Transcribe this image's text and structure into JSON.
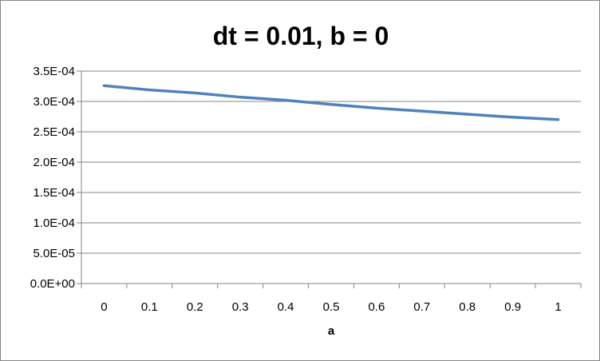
{
  "chart_data": {
    "type": "line",
    "title": "dt = 0.01, b = 0",
    "xlabel": "a",
    "ylabel": "",
    "categories": [
      "0",
      "0.1",
      "0.2",
      "0.3",
      "0.4",
      "0.5",
      "0.6",
      "0.7",
      "0.8",
      "0.9",
      "1"
    ],
    "series": [
      {
        "values": [
          0.000326,
          0.000319,
          0.000314,
          0.000307,
          0.000302,
          0.000295,
          0.000289,
          0.000284,
          0.000279,
          0.000274,
          0.00027
        ],
        "color": "#4F81BD"
      }
    ],
    "ylim": [
      0,
      0.00035
    ],
    "yticks": [
      "0.0E+00",
      "5.0E-05",
      "1.0E-04",
      "1.5E-04",
      "2.0E-04",
      "2.5E-04",
      "3.0E-04",
      "3.5E-04"
    ],
    "grid": true,
    "legend": "none"
  }
}
